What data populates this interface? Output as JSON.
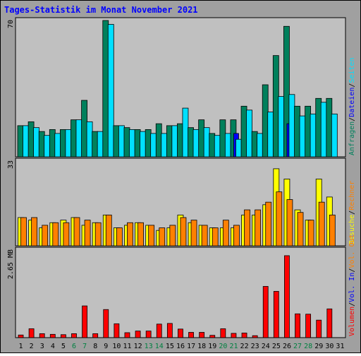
{
  "title": "Tages-Statistik im Monat November 2021",
  "colors": {
    "frame": "#a0a0a0",
    "panel": "#c0c0c0",
    "anfragen": "#00805c",
    "dateien": "#0000ff",
    "seiten": "#00e0ff",
    "besuche": "#ffff00",
    "rechner": "#ff8000",
    "volumen": "#ff0000",
    "weekend_text": "#008040",
    "weekday_text": "#000000",
    "axis_text": "#000000"
  },
  "chart_data": [
    {
      "type": "bar",
      "panel": "top",
      "ymax_label": "70",
      "ymax": 70,
      "categories": [
        "1",
        "2",
        "3",
        "4",
        "5",
        "6",
        "7",
        "8",
        "9",
        "10",
        "11",
        "12",
        "13",
        "14",
        "15",
        "16",
        "17",
        "18",
        "19",
        "20",
        "21",
        "22",
        "23",
        "24",
        "25",
        "26",
        "27",
        "28",
        "29",
        "30",
        "31"
      ],
      "series": [
        {
          "name": "Anfragen",
          "color": "#00805c",
          "values": [
            16,
            18,
            13,
            14,
            14,
            19,
            29,
            13,
            70,
            16,
            15,
            14,
            14,
            17,
            16,
            17,
            15,
            19,
            12,
            19,
            19,
            26,
            13,
            37,
            52,
            67,
            26,
            26,
            30,
            30,
            0
          ]
        },
        {
          "name": "Dateien",
          "color": "#0000ff",
          "values": [
            0,
            0,
            0,
            0,
            0,
            0,
            0,
            0,
            0,
            0,
            0,
            0,
            0,
            0,
            0,
            0,
            0,
            0,
            0,
            0,
            12,
            0,
            0,
            0,
            0,
            17,
            0,
            0,
            0,
            0,
            0
          ]
        },
        {
          "name": "Seiten",
          "color": "#00e0ff",
          "values": [
            16,
            15,
            11,
            12,
            14,
            19,
            18,
            13,
            68,
            16,
            14,
            13,
            12,
            12,
            16,
            25,
            14,
            15,
            11,
            12,
            9,
            24,
            12,
            23,
            31,
            32,
            21,
            22,
            28,
            22,
            0
          ]
        }
      ],
      "legend": [
        "Anfragen",
        "/",
        "Dateien",
        "/",
        "Seiten"
      ]
    },
    {
      "type": "bar",
      "panel": "middle",
      "ymax_label": "33",
      "ymax": 33,
      "categories": [
        "1",
        "2",
        "3",
        "4",
        "5",
        "6",
        "7",
        "8",
        "9",
        "10",
        "11",
        "12",
        "13",
        "14",
        "15",
        "16",
        "17",
        "18",
        "19",
        "20",
        "21",
        "22",
        "23",
        "24",
        "25",
        "26",
        "27",
        "28",
        "29",
        "30",
        "31"
      ],
      "series": [
        {
          "name": "Besuche",
          "color": "#ffff00",
          "values": [
            11,
            10,
            7,
            9,
            10,
            11,
            8,
            9,
            12,
            7,
            8,
            9,
            8,
            6,
            7,
            12,
            9,
            8,
            7,
            7,
            7,
            12,
            12,
            16,
            30,
            26,
            14,
            10,
            26,
            19,
            0
          ]
        },
        {
          "name": "Rechner",
          "color": "#ff8000",
          "values": [
            11,
            11,
            8,
            9,
            9,
            11,
            10,
            9,
            12,
            7,
            9,
            9,
            8,
            7,
            8,
            11,
            10,
            8,
            7,
            10,
            8,
            14,
            14,
            17,
            21,
            18,
            13,
            10,
            17,
            12,
            0
          ]
        }
      ],
      "legend": [
        "Besuche",
        "/",
        "Rechner"
      ]
    },
    {
      "type": "bar",
      "panel": "bottom",
      "ymax_label": "2.65 MB",
      "ymax": 2.65,
      "categories": [
        "1",
        "2",
        "3",
        "4",
        "5",
        "6",
        "7",
        "8",
        "9",
        "10",
        "11",
        "12",
        "13",
        "14",
        "15",
        "16",
        "17",
        "18",
        "19",
        "20",
        "21",
        "22",
        "23",
        "24",
        "25",
        "26",
        "27",
        "28",
        "29",
        "30",
        "31"
      ],
      "series": [
        {
          "name": "Volumen",
          "color": "#ff0000",
          "values": [
            0.08,
            0.27,
            0.12,
            0.1,
            0.09,
            0.12,
            0.96,
            0.12,
            0.85,
            0.42,
            0.15,
            0.2,
            0.2,
            0.41,
            0.43,
            0.26,
            0.16,
            0.16,
            0.07,
            0.27,
            0.13,
            0.14,
            0.06,
            1.55,
            1.4,
            2.48,
            0.72,
            0.71,
            0.53,
            0.87,
            0
          ]
        }
      ],
      "legend": [
        "Volumen",
        "/",
        "Vol. In",
        "/",
        "Vol. Out"
      ]
    }
  ],
  "x_labels": [
    {
      "label": "1",
      "weekend": false
    },
    {
      "label": "2",
      "weekend": false
    },
    {
      "label": "3",
      "weekend": false
    },
    {
      "label": "4",
      "weekend": false
    },
    {
      "label": "5",
      "weekend": false
    },
    {
      "label": "6",
      "weekend": true
    },
    {
      "label": "7",
      "weekend": true
    },
    {
      "label": "8",
      "weekend": false
    },
    {
      "label": "9",
      "weekend": false
    },
    {
      "label": "10",
      "weekend": false
    },
    {
      "label": "11",
      "weekend": false
    },
    {
      "label": "12",
      "weekend": false
    },
    {
      "label": "13",
      "weekend": true
    },
    {
      "label": "14",
      "weekend": true
    },
    {
      "label": "15",
      "weekend": false
    },
    {
      "label": "16",
      "weekend": false
    },
    {
      "label": "17",
      "weekend": false
    },
    {
      "label": "18",
      "weekend": false
    },
    {
      "label": "19",
      "weekend": false
    },
    {
      "label": "20",
      "weekend": true
    },
    {
      "label": "21",
      "weekend": true
    },
    {
      "label": "22",
      "weekend": false
    },
    {
      "label": "23",
      "weekend": false
    },
    {
      "label": "24",
      "weekend": false
    },
    {
      "label": "25",
      "weekend": false
    },
    {
      "label": "26",
      "weekend": false
    },
    {
      "label": "27",
      "weekend": true
    },
    {
      "label": "28",
      "weekend": true
    },
    {
      "label": "29",
      "weekend": false
    },
    {
      "label": "30",
      "weekend": false
    },
    {
      "label": "31",
      "weekend": false
    }
  ]
}
